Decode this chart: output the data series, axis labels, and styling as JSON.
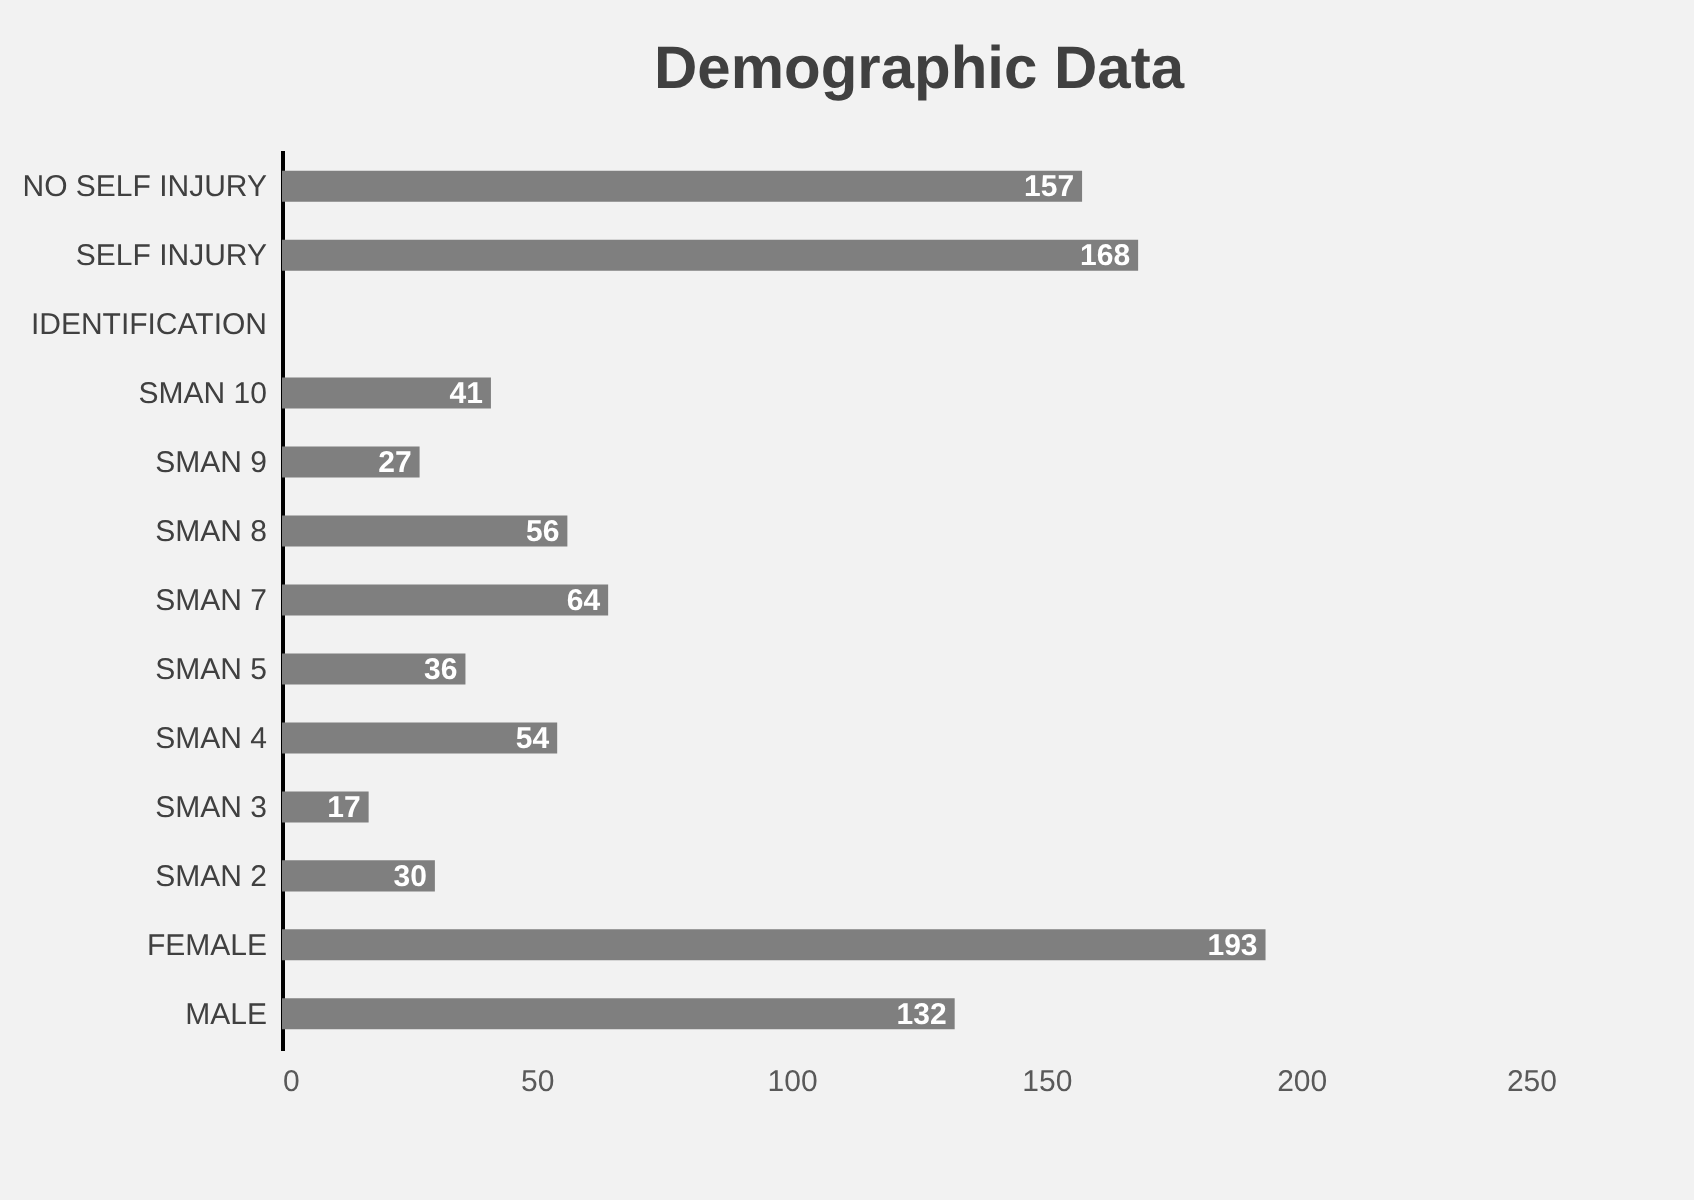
{
  "chart_data": {
    "type": "bar",
    "orientation": "horizontal",
    "title": "Demographic Data",
    "categories": [
      "NO SELF INJURY",
      "SELF INJURY",
      "IDENTIFICATION",
      "SMAN 10",
      "SMAN 9",
      "SMAN 8",
      "SMAN 7",
      "SMAN 5",
      "SMAN 4",
      "SMAN 3",
      "SMAN 2",
      "FEMALE",
      "MALE"
    ],
    "values": [
      157,
      168,
      null,
      41,
      27,
      56,
      64,
      36,
      54,
      17,
      30,
      193,
      132
    ],
    "color": "#7f7f7f",
    "xlim": [
      0,
      250
    ],
    "xticks": [
      0,
      50,
      100,
      150,
      200,
      250
    ],
    "grid": false,
    "data_labels": true
  }
}
